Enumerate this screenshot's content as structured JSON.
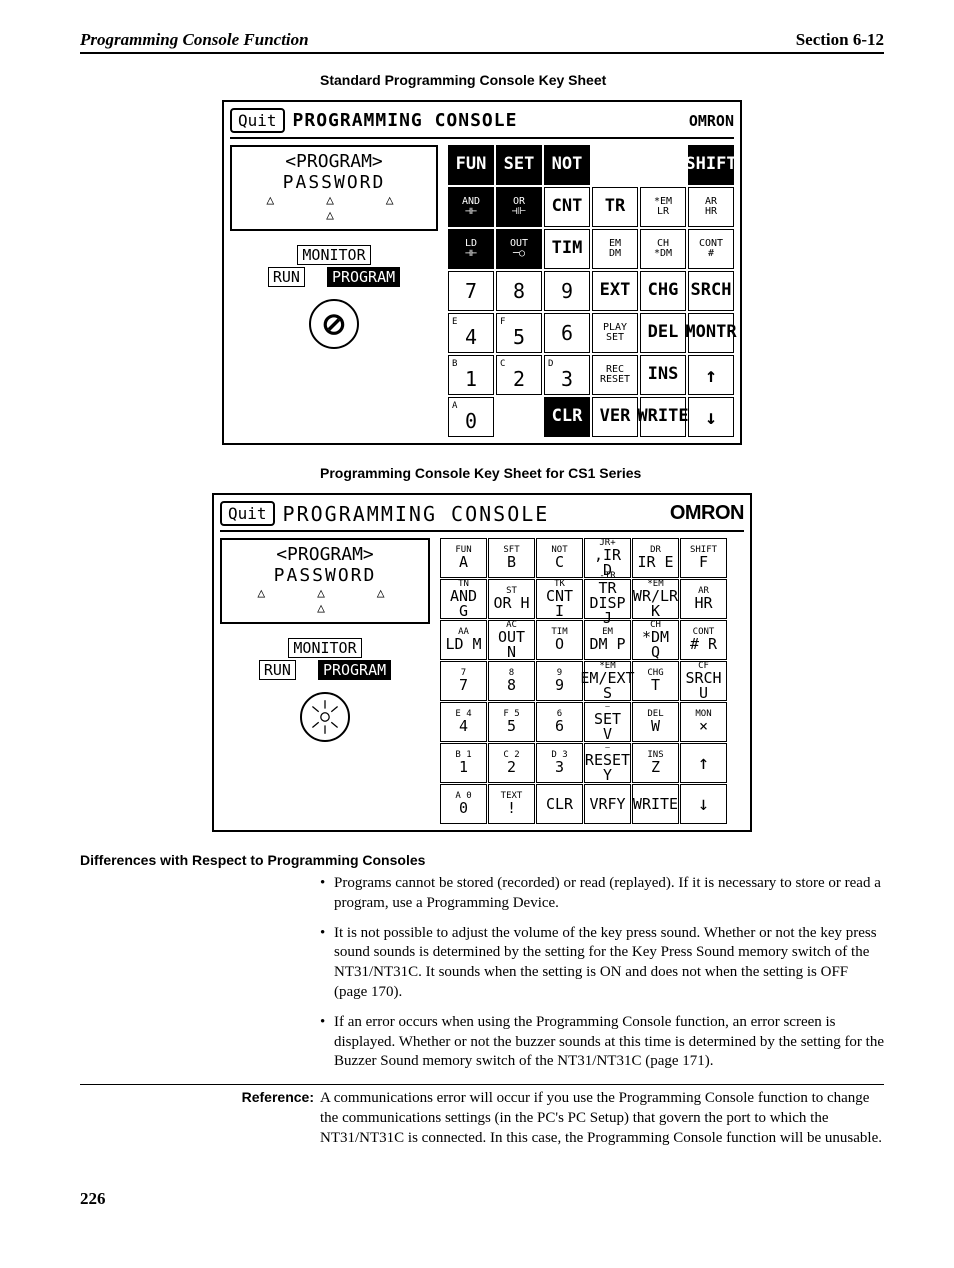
{
  "header": {
    "left": "Programming Console Function",
    "right": "Section  6-12"
  },
  "heading1": "Standard Programming Console Key Sheet",
  "heading2": "Programming Console Key Sheet for CS1 Series",
  "console_shared": {
    "quit": "Quit",
    "title": "PROGRAMMING CONSOLE",
    "brand": "OMRON",
    "lcd_line1": "<PROGRAM>",
    "lcd_line2": "PASSWORD",
    "arrows": "△  △  △  △",
    "monitor": "MONITOR",
    "run": "RUN",
    "program": "PROGRAM"
  },
  "keys1": [
    [
      "FUN",
      "SET",
      "NOT",
      "",
      "",
      "SHIFT"
    ],
    [
      "AND\n⊣⊢",
      "OR\n⊣⊩",
      "CNT",
      "TR",
      "*EM\nLR",
      "AR\nHR"
    ],
    [
      "LD\n⊣⊢",
      "OUT\n─○",
      "TIM",
      "EM\nDM",
      "CH\n*DM",
      "CONT\n#"
    ],
    [
      "7",
      "8",
      "9",
      "EXT",
      "CHG",
      "SRCH"
    ],
    [
      "E 4",
      "F 5",
      "6",
      "PLAY\nSET",
      "DEL",
      "MONTR"
    ],
    [
      "B 1",
      "C 2",
      "D 3",
      "REC\nRESET",
      "INS",
      "↑"
    ],
    [
      "A 0",
      "",
      "CLR",
      "VER",
      "WRITE",
      "↓"
    ]
  ],
  "keys1_dark": [
    [
      0,
      0
    ],
    [
      0,
      1
    ],
    [
      0,
      2
    ],
    [
      0,
      5
    ],
    [
      1,
      0
    ],
    [
      1,
      1
    ],
    [
      2,
      0
    ],
    [
      2,
      1
    ],
    [
      6,
      2
    ]
  ],
  "keys2": [
    [
      "FUN\nA",
      "SFT\nB",
      "NOT\nC",
      "JR+\n,IR D",
      "DR\nIR E",
      "SHIFT\nF"
    ],
    [
      "TN\nAND G",
      "ST\nOR H",
      "TK\nCNT I",
      "-IR\nTR DISP J",
      "*EM\nWR/LR K",
      "AR\nHR"
    ],
    [
      "AA\nLD M",
      "AC\nOUT N",
      "TIM\nO",
      "EM\nDM P",
      "CH\n*DM Q",
      "CONT\n# R"
    ],
    [
      "7\n7",
      "8\n8",
      "9\n9",
      "*EM\nEM/EXT S",
      "CHG\nT",
      "CF\nSRCH U"
    ],
    [
      "E 4\n4",
      "F 5\n5",
      "6\n6",
      "⎯\nSET V",
      "DEL\nW",
      "MON\n×"
    ],
    [
      "B 1\n1",
      "C 2\n2",
      "D 3\n3",
      "⎯\nRESET Y",
      "INS\nZ",
      "↑"
    ],
    [
      "A 0\n0",
      "TEXT\n!",
      "CLR",
      "VRFY",
      "WRITE",
      "↓"
    ]
  ],
  "subheading": "Differences with Respect to Programming Consoles",
  "bullets": [
    "Programs cannot be stored (recorded) or read (replayed). If it is necessary to store or read a program, use a Programming Device.",
    "It is not possible to adjust the volume of the key press sound. Whether or not the key press sound sounds is determined by the setting for the Key Press Sound memory switch of the NT31/NT31C. It sounds when the setting is ON and does not when the setting is OFF (page 170).",
    "If an error occurs when using the Programming Console function, an error screen is displayed. Whether or not the buzzer sounds at this time is determined by the setting for the Buzzer Sound memory switch of the NT31/NT31C (page 171)."
  ],
  "reference": {
    "label": "Reference:",
    "text": "A communications error will occur if you use the Programming Console function to change the communications settings (in the PC's PC Setup) that govern the port to which the NT31/NT31C is connected. In this case, the Programming Console function will be unusable."
  },
  "page_number": "226"
}
